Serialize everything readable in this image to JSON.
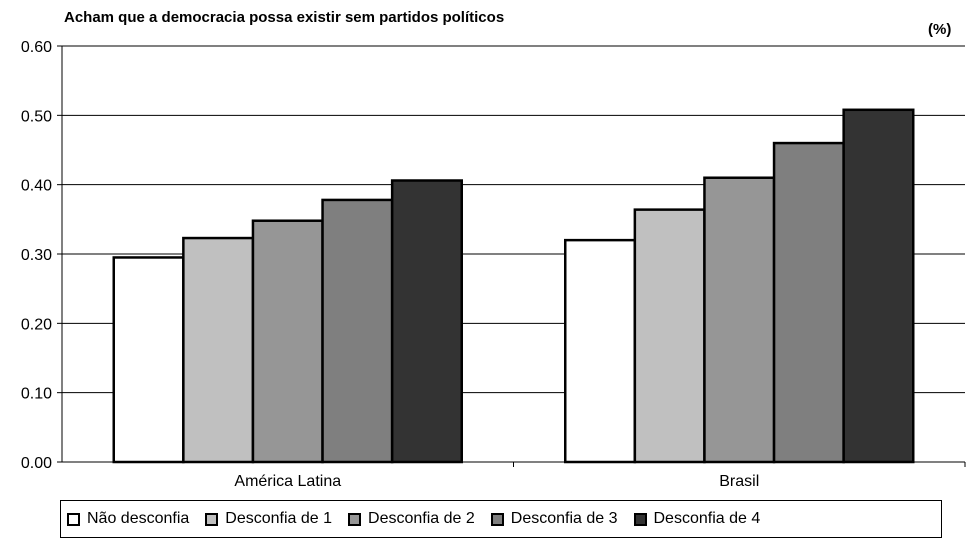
{
  "chart_data": {
    "type": "bar",
    "title": "Acham que a democracia possa existir sem partidos políticos",
    "unit_label": "(%)",
    "categories": [
      "América Latina",
      "Brasil"
    ],
    "series": [
      {
        "name": "Não desconfia",
        "values": [
          0.295,
          0.32
        ],
        "color": "#ffffff"
      },
      {
        "name": "Desconfia de 1",
        "values": [
          0.323,
          0.364
        ],
        "color": "#c0c0c0"
      },
      {
        "name": "Desconfia de 2",
        "values": [
          0.348,
          0.41
        ],
        "color": "#969696"
      },
      {
        "name": "Desconfia de 3",
        "values": [
          0.378,
          0.46
        ],
        "color": "#7f7f7f"
      },
      {
        "name": "Desconfia de 4",
        "values": [
          0.406,
          0.508
        ],
        "color": "#333333"
      }
    ],
    "yticks": [
      "0.00",
      "0.10",
      "0.20",
      "0.30",
      "0.40",
      "0.50",
      "0.60"
    ],
    "ylim": [
      0,
      0.6
    ],
    "grid": true,
    "legend_position": "bottom"
  }
}
